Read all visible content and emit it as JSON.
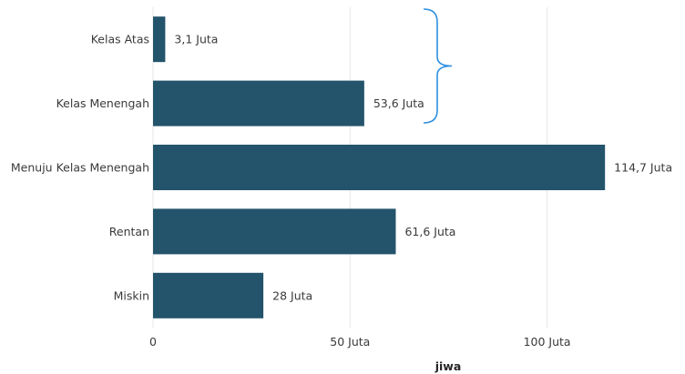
{
  "chart_data": {
    "type": "bar",
    "orientation": "horizontal",
    "title": "",
    "categories": [
      "Kelas Atas",
      "Kelas Menengah",
      "Menuju Kelas Menengah",
      "Rentan",
      "Miskin"
    ],
    "values": [
      3.1,
      53.6,
      114.7,
      61.6,
      28
    ],
    "data_labels": [
      "3,1 Juta",
      "53,6 Juta",
      "114,7 Juta",
      "61,6 Juta",
      "28 Juta"
    ],
    "xlabel": "jiwa",
    "ylabel": "",
    "xlim": [
      0,
      135
    ],
    "xticks": [
      0,
      50,
      100
    ],
    "xtick_labels": [
      "0",
      "50 Juta",
      "100 Juta"
    ],
    "grid": true,
    "bar_color": "#23546b",
    "bracket_color": "#2e8fe0",
    "bracket_categories": [
      "Kelas Atas",
      "Kelas Menengah"
    ]
  }
}
